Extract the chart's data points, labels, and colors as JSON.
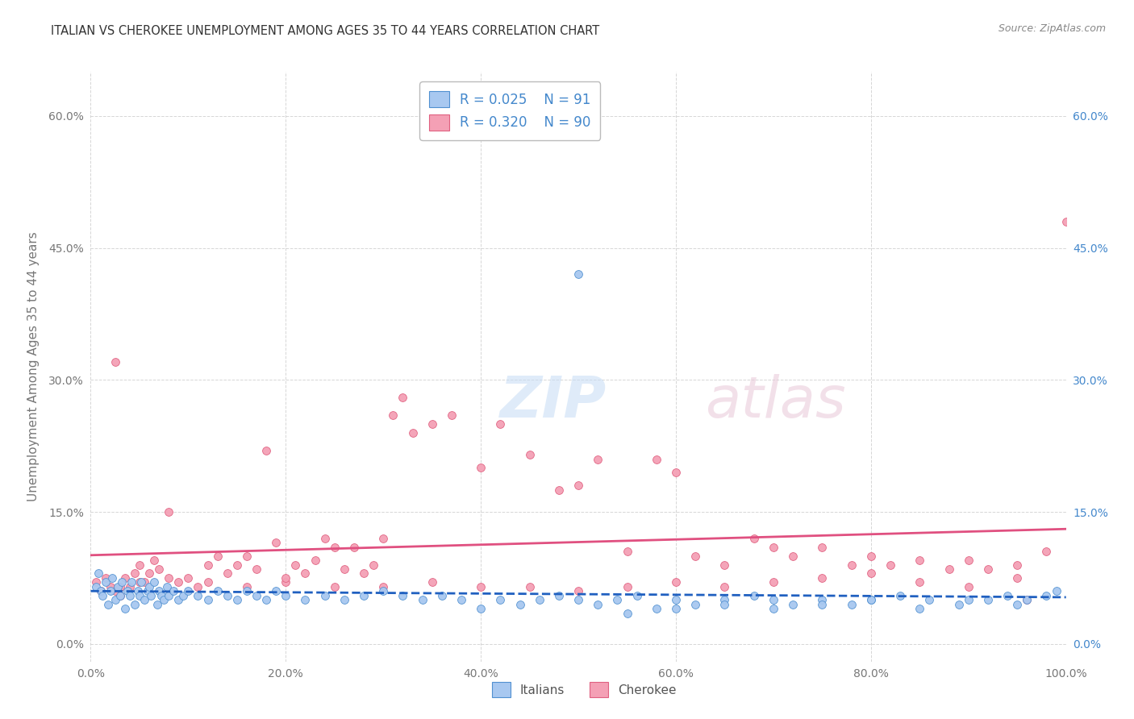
{
  "title": "ITALIAN VS CHEROKEE UNEMPLOYMENT AMONG AGES 35 TO 44 YEARS CORRELATION CHART",
  "source": "Source: ZipAtlas.com",
  "ylabel": "Unemployment Among Ages 35 to 44 years",
  "xlim": [
    0.0,
    1.0
  ],
  "ylim": [
    -0.02,
    0.65
  ],
  "xticks": [
    0.0,
    0.2,
    0.4,
    0.6,
    0.8,
    1.0
  ],
  "xticklabels": [
    "0.0%",
    "20.0%",
    "40.0%",
    "60.0%",
    "80.0%",
    "100.0%"
  ],
  "yticks": [
    0.0,
    0.15,
    0.3,
    0.45,
    0.6
  ],
  "yticklabels": [
    "0.0%",
    "15.0%",
    "30.0%",
    "45.0%",
    "60.0%"
  ],
  "italian_color": "#A8C8F0",
  "cherokee_color": "#F4A0B5",
  "italian_edge_color": "#5090D0",
  "cherokee_edge_color": "#E06080",
  "italian_line_color": "#2060C0",
  "cherokee_line_color": "#E05080",
  "legend_R_italian": "0.025",
  "legend_N_italian": "91",
  "legend_R_cherokee": "0.320",
  "legend_N_cherokee": "90",
  "legend_text_color": "#4488CC",
  "watermark_text": "ZIPatlas",
  "background_color": "#ffffff",
  "grid_color": "#cccccc",
  "right_tick_color": "#4488CC",
  "left_tick_color": "#777777",
  "title_color": "#333333",
  "source_color": "#888888",
  "italian_x": [
    0.005,
    0.008,
    0.01,
    0.012,
    0.015,
    0.018,
    0.02,
    0.022,
    0.025,
    0.028,
    0.03,
    0.032,
    0.035,
    0.038,
    0.04,
    0.042,
    0.045,
    0.048,
    0.05,
    0.052,
    0.055,
    0.058,
    0.06,
    0.062,
    0.065,
    0.068,
    0.07,
    0.072,
    0.075,
    0.078,
    0.08,
    0.085,
    0.09,
    0.095,
    0.1,
    0.11,
    0.12,
    0.13,
    0.14,
    0.15,
    0.16,
    0.17,
    0.18,
    0.19,
    0.2,
    0.22,
    0.24,
    0.26,
    0.28,
    0.3,
    0.32,
    0.34,
    0.36,
    0.38,
    0.4,
    0.42,
    0.44,
    0.46,
    0.48,
    0.5,
    0.52,
    0.54,
    0.56,
    0.58,
    0.6,
    0.62,
    0.65,
    0.68,
    0.7,
    0.72,
    0.75,
    0.78,
    0.8,
    0.83,
    0.86,
    0.89,
    0.92,
    0.94,
    0.96,
    0.98,
    0.99,
    0.5,
    0.55,
    0.6,
    0.65,
    0.7,
    0.75,
    0.8,
    0.85,
    0.9,
    0.95
  ],
  "italian_y": [
    0.065,
    0.08,
    0.06,
    0.055,
    0.07,
    0.045,
    0.06,
    0.075,
    0.05,
    0.065,
    0.055,
    0.07,
    0.04,
    0.06,
    0.055,
    0.07,
    0.045,
    0.06,
    0.055,
    0.07,
    0.05,
    0.06,
    0.065,
    0.055,
    0.07,
    0.045,
    0.06,
    0.055,
    0.05,
    0.065,
    0.055,
    0.06,
    0.05,
    0.055,
    0.06,
    0.055,
    0.05,
    0.06,
    0.055,
    0.05,
    0.06,
    0.055,
    0.05,
    0.06,
    0.055,
    0.05,
    0.055,
    0.05,
    0.055,
    0.06,
    0.055,
    0.05,
    0.055,
    0.05,
    0.04,
    0.05,
    0.045,
    0.05,
    0.055,
    0.05,
    0.045,
    0.05,
    0.055,
    0.04,
    0.05,
    0.045,
    0.05,
    0.055,
    0.05,
    0.045,
    0.05,
    0.045,
    0.05,
    0.055,
    0.05,
    0.045,
    0.05,
    0.055,
    0.05,
    0.055,
    0.06,
    0.42,
    0.035,
    0.04,
    0.045,
    0.04,
    0.045,
    0.05,
    0.04,
    0.05,
    0.045
  ],
  "cherokee_x": [
    0.005,
    0.01,
    0.015,
    0.02,
    0.025,
    0.03,
    0.035,
    0.04,
    0.045,
    0.05,
    0.055,
    0.06,
    0.065,
    0.07,
    0.08,
    0.09,
    0.1,
    0.11,
    0.12,
    0.13,
    0.14,
    0.15,
    0.16,
    0.17,
    0.18,
    0.19,
    0.2,
    0.21,
    0.22,
    0.23,
    0.24,
    0.25,
    0.26,
    0.27,
    0.28,
    0.29,
    0.3,
    0.31,
    0.32,
    0.33,
    0.35,
    0.37,
    0.4,
    0.42,
    0.45,
    0.48,
    0.5,
    0.52,
    0.55,
    0.58,
    0.6,
    0.62,
    0.65,
    0.68,
    0.7,
    0.72,
    0.75,
    0.78,
    0.8,
    0.82,
    0.85,
    0.88,
    0.9,
    0.92,
    0.95,
    0.98,
    0.03,
    0.05,
    0.08,
    0.12,
    0.16,
    0.2,
    0.25,
    0.3,
    0.35,
    0.4,
    0.45,
    0.5,
    0.55,
    0.6,
    0.65,
    0.7,
    0.75,
    0.8,
    0.85,
    0.9,
    0.95,
    1.0,
    0.025,
    0.96
  ],
  "cherokee_y": [
    0.07,
    0.06,
    0.075,
    0.065,
    0.32,
    0.055,
    0.075,
    0.065,
    0.08,
    0.09,
    0.07,
    0.08,
    0.095,
    0.085,
    0.15,
    0.07,
    0.075,
    0.065,
    0.09,
    0.1,
    0.08,
    0.09,
    0.1,
    0.085,
    0.22,
    0.115,
    0.07,
    0.09,
    0.08,
    0.095,
    0.12,
    0.11,
    0.085,
    0.11,
    0.08,
    0.09,
    0.12,
    0.26,
    0.28,
    0.24,
    0.25,
    0.26,
    0.2,
    0.25,
    0.215,
    0.175,
    0.18,
    0.21,
    0.105,
    0.21,
    0.195,
    0.1,
    0.09,
    0.12,
    0.11,
    0.1,
    0.11,
    0.09,
    0.1,
    0.09,
    0.095,
    0.085,
    0.095,
    0.085,
    0.09,
    0.105,
    0.065,
    0.07,
    0.075,
    0.07,
    0.065,
    0.075,
    0.065,
    0.065,
    0.07,
    0.065,
    0.065,
    0.06,
    0.065,
    0.07,
    0.065,
    0.07,
    0.075,
    0.08,
    0.07,
    0.065,
    0.075,
    0.48,
    0.06,
    0.05
  ]
}
